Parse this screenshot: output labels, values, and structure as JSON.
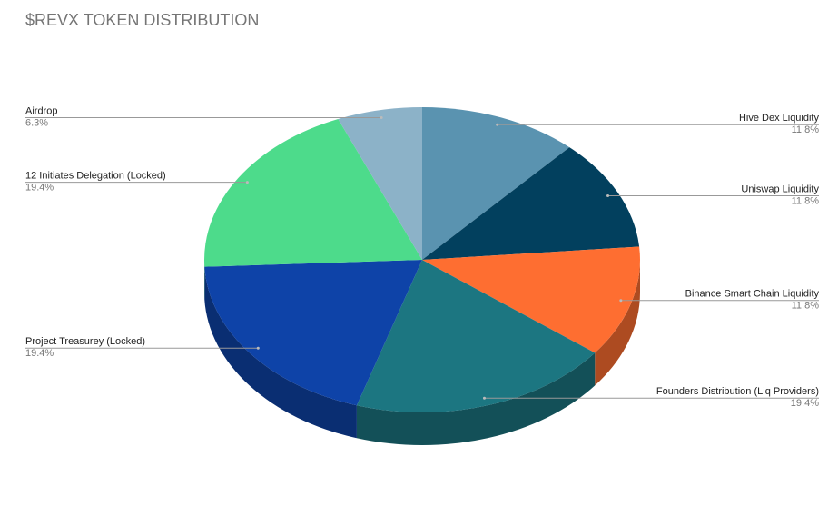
{
  "chart_data": {
    "type": "pie",
    "title": "$REVX TOKEN DISTRIBUTION",
    "categories": [
      "Hive Dex Liquidity",
      "Uniswap Liquidity",
      "Binance Smart Chain Liquidity",
      "Founders Distribution (Liq Providers)",
      "Project Treasurey (Locked)",
      "12 Initiates Delegation (Locked)",
      "Airdrop"
    ],
    "values": [
      11.8,
      11.8,
      11.8,
      19.4,
      19.4,
      19.4,
      6.3
    ],
    "value_labels": [
      "11.8%",
      "11.8%",
      "11.8%",
      "19.4%",
      "19.4%",
      "19.4%",
      "6.3%"
    ],
    "colors": [
      "#5a93b0",
      "#02405e",
      "#fe6e31",
      "#1c7681",
      "#0e43a8",
      "#4ddb8b",
      "#8cb2c8"
    ]
  }
}
